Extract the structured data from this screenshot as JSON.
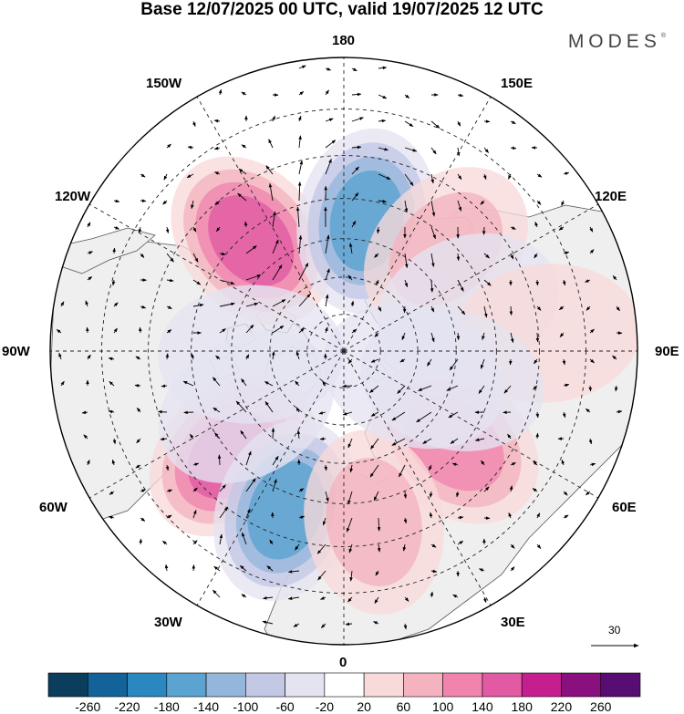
{
  "title": "Base 12/07/2025 00 UTC, valid 19/07/2025 12 UTC",
  "brand": "MODES",
  "brand_mark": "®",
  "lon_labels": {
    "deg180": "180",
    "deg150w": "150W",
    "deg150e": "150E",
    "deg120w": "120W",
    "deg120e": "120E",
    "deg90w": "90W",
    "deg90e": "90E",
    "deg60w": "60W",
    "deg60e": "60E",
    "deg30w": "30W",
    "deg30e": "30E",
    "deg0": "0"
  },
  "vector_scale_label": "30",
  "colors": {
    "land": "#efefef",
    "coast": "#555555",
    "grid": "#222222"
  },
  "colorbar": {
    "colors": [
      "#0b3d5c",
      "#13639a",
      "#2a87c0",
      "#5ba3d1",
      "#95b6dc",
      "#c3c8e5",
      "#e4e3f1",
      "#ffffff",
      "#f8dada",
      "#f4b3bf",
      "#f084ae",
      "#e25aa3",
      "#c51f8f",
      "#8a0f7f",
      "#570d73"
    ],
    "labels": [
      "-260",
      "-220",
      "-180",
      "-140",
      "-100",
      "-60",
      "-20",
      "20",
      "60",
      "100",
      "140",
      "180",
      "220",
      "260"
    ]
  },
  "anomalies": [
    {
      "lat": 52,
      "lon": -140,
      "value": 160
    },
    {
      "lat": 55,
      "lon": 170,
      "value": -150
    },
    {
      "lat": 52,
      "lon": 135,
      "value": 80
    },
    {
      "lat": 50,
      "lon": -47,
      "value": 150
    },
    {
      "lat": 46,
      "lon": -20,
      "value": -140
    },
    {
      "lat": 52,
      "lon": 50,
      "value": 110
    },
    {
      "lat": 45,
      "lon": 10,
      "value": 60
    },
    {
      "lat": 55,
      "lon": 110,
      "value": -40
    },
    {
      "lat": 38,
      "lon": 95,
      "value": 50
    },
    {
      "lat": 65,
      "lon": -88,
      "value": -40
    },
    {
      "lat": 60,
      "lon": -60,
      "value": -30
    },
    {
      "lat": 70,
      "lon": 70,
      "value": -30
    },
    {
      "lat": 60,
      "lon": 75,
      "value": -30
    }
  ]
}
